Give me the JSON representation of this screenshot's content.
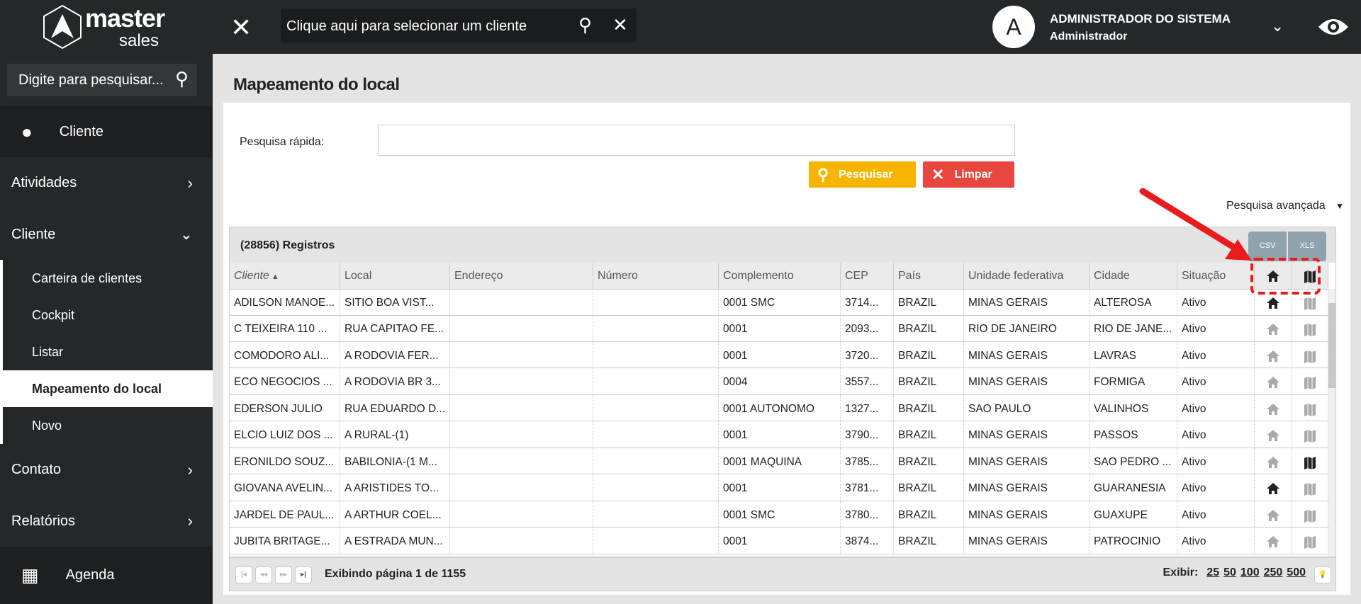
{
  "brand": {
    "name": "master",
    "sub": "sales"
  },
  "topbar": {
    "client_placeholder": "Clique aqui para selecionar um cliente",
    "avatar_letter": "A",
    "user_name": "ADMINISTRADOR DO SISTEMA",
    "user_role": "Administrador"
  },
  "sidebar": {
    "search_placeholder": "Digite para pesquisar...",
    "items": [
      {
        "label": "Cliente"
      },
      {
        "label": "Atividades"
      },
      {
        "label": "Cliente"
      },
      {
        "label": "Contato"
      },
      {
        "label": "Relatórios"
      },
      {
        "label": "Agenda"
      }
    ],
    "subitems": [
      {
        "label": "Carteira de clientes"
      },
      {
        "label": "Cockpit"
      },
      {
        "label": "Listar"
      },
      {
        "label": "Mapeamento do local"
      },
      {
        "label": "Novo"
      }
    ]
  },
  "page": {
    "title": "Mapeamento do local",
    "quick_search_label": "Pesquisa rápida:",
    "quick_search_value": "",
    "search_btn": "Pesquisar",
    "clear_btn": "Limpar",
    "advanced": "Pesquisa avançada"
  },
  "grid": {
    "count": "(28856) Registros",
    "csv": "CSV",
    "xls": "XLS",
    "columns": [
      "Cliente",
      "Local",
      "Endereço",
      "Número",
      "Complemento",
      "CEP",
      "País",
      "Unidade federativa",
      "Cidade",
      "Situação"
    ],
    "rows": [
      [
        "ADILSON MANOE...",
        "SITIO BOA VIST...",
        "",
        "",
        "0001 SMC",
        "3714...",
        "BRAZIL",
        "MINAS GERAIS",
        "ALTEROSA",
        "Ativo"
      ],
      [
        "C TEIXEIRA 110 ...",
        "RUA CAPITAO FE...",
        "",
        "",
        "0001",
        "2093...",
        "BRAZIL",
        "RIO DE JANEIRO",
        "RIO DE JANE...",
        "Ativo"
      ],
      [
        "COMODORO ALI...",
        "A RODOVIA FER...",
        "",
        "",
        "0001",
        "3720...",
        "BRAZIL",
        "MINAS GERAIS",
        "LAVRAS",
        "Ativo"
      ],
      [
        "ECO NEGOCIOS ...",
        "A RODOVIA BR 3...",
        "",
        "",
        "0004",
        "3557...",
        "BRAZIL",
        "MINAS GERAIS",
        "FORMIGA",
        "Ativo"
      ],
      [
        "EDERSON JULIO",
        "RUA EDUARDO D...",
        "",
        "",
        "0001 AUTONOMO",
        "1327...",
        "BRAZIL",
        "SAO PAULO",
        "VALINHOS",
        "Ativo"
      ],
      [
        "ELCIO LUIZ DOS ...",
        "A RURAL-(1)",
        "",
        "",
        "0001",
        "3790...",
        "BRAZIL",
        "MINAS GERAIS",
        "PASSOS",
        "Ativo"
      ],
      [
        "ERONILDO SOUZ...",
        "BABILONIA-(1 M...",
        "",
        "",
        "0001 MAQUINA",
        "3785...",
        "BRAZIL",
        "MINAS GERAIS",
        "SAO PEDRO ...",
        "Ativo"
      ],
      [
        "GIOVANA AVELIN...",
        "A ARISTIDES TO...",
        "",
        "",
        "0001",
        "3781...",
        "BRAZIL",
        "MINAS GERAIS",
        "GUARANESIA",
        "Ativo"
      ],
      [
        "JARDEL DE PAUL...",
        "A ARTHUR COEL...",
        "",
        "",
        "0001 SMC",
        "3780...",
        "BRAZIL",
        "MINAS GERAIS",
        "GUAXUPE",
        "Ativo"
      ],
      [
        "JUBITA BRITAGE...",
        "A ESTRADA MUN...",
        "",
        "",
        "0001",
        "3874...",
        "BRAZIL",
        "MINAS GERAIS",
        "PATROCINIO",
        "Ativo"
      ]
    ],
    "home_active": [
      true,
      false,
      false,
      false,
      false,
      false,
      false,
      true,
      false,
      false
    ],
    "map_active": [
      false,
      false,
      false,
      false,
      false,
      false,
      true,
      false,
      false,
      false
    ],
    "pager": "Exibindo página 1 de 1155",
    "show_label": "Exibir:",
    "sizes": [
      "25",
      "50",
      "100",
      "250",
      "500"
    ]
  },
  "colors": {
    "yellow": "#f7b500",
    "red": "#e8463f",
    "dark": "#25282b"
  }
}
